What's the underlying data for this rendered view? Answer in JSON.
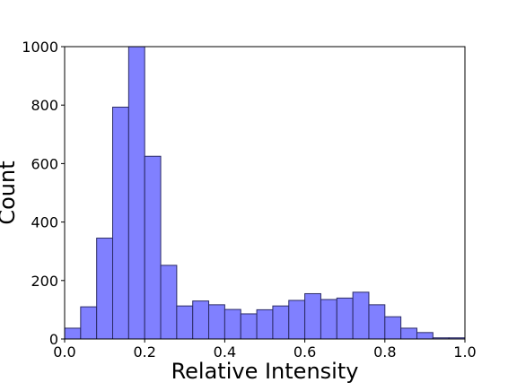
{
  "chart_data": {
    "type": "bar",
    "title": "",
    "xlabel": "Relative Intensity",
    "ylabel": "Count",
    "xlim": [
      0.0,
      1.0
    ],
    "ylim": [
      0,
      1000
    ],
    "grid": false,
    "bin_edges": [
      0.0,
      0.04,
      0.08,
      0.12,
      0.16,
      0.2,
      0.24,
      0.28,
      0.32,
      0.36,
      0.4,
      0.44,
      0.48,
      0.52,
      0.56,
      0.6,
      0.64,
      0.68,
      0.72,
      0.76,
      0.8,
      0.84,
      0.88,
      0.92,
      0.96,
      1.0
    ],
    "values": [
      37,
      110,
      345,
      793,
      1000,
      625,
      252,
      113,
      130,
      117,
      101,
      86,
      100,
      113,
      132,
      155,
      135,
      140,
      160,
      117,
      76,
      37,
      22,
      4,
      4
    ],
    "x_ticks": [
      "0.0",
      "0.2",
      "0.4",
      "0.6",
      "0.8",
      "1.0"
    ],
    "y_ticks": [
      "0",
      "200",
      "400",
      "600",
      "800",
      "1000"
    ],
    "bar_fill_color": "#8080ff",
    "bar_edge_color": "#2b2b66"
  }
}
